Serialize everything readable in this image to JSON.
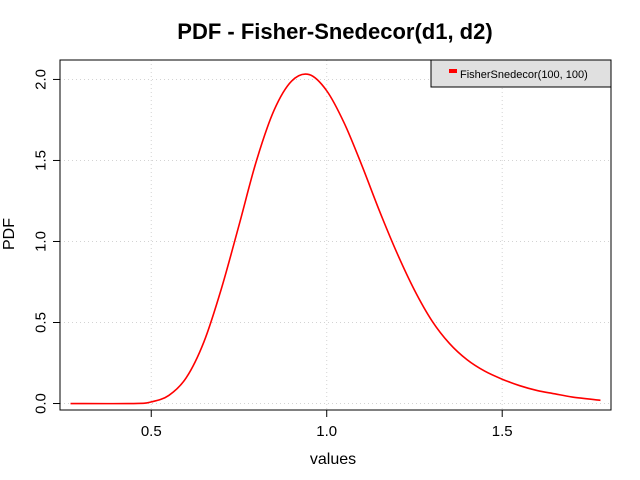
{
  "chart_data": {
    "type": "line",
    "title": "PDF - Fisher-Snedecor(d1, d2)",
    "xlabel": "values",
    "ylabel": "PDF",
    "xlim": [
      0.24,
      1.81
    ],
    "ylim": [
      -0.04,
      2.12
    ],
    "xticks": [
      0.5,
      1.0,
      1.5
    ],
    "xtick_labels": [
      "0.5",
      "1.0",
      "1.5"
    ],
    "yticks": [
      0.0,
      0.5,
      1.0,
      1.5,
      2.0
    ],
    "ytick_labels": [
      "0.0",
      "0.5",
      "1.0",
      "1.5",
      "2.0"
    ],
    "grid": true,
    "legend_position": "top-right",
    "series": [
      {
        "name": "FisherSnedecor(100, 100)",
        "color": "#ff0000",
        "x": [
          0.27,
          0.45,
          0.5,
          0.55,
          0.6,
          0.65,
          0.7,
          0.75,
          0.8,
          0.85,
          0.9,
          0.95,
          1.0,
          1.05,
          1.1,
          1.15,
          1.2,
          1.25,
          1.3,
          1.35,
          1.4,
          1.45,
          1.5,
          1.55,
          1.6,
          1.65,
          1.7,
          1.78
        ],
        "y": [
          0.0,
          0.0,
          0.01,
          0.05,
          0.16,
          0.38,
          0.71,
          1.1,
          1.5,
          1.81,
          1.99,
          2.03,
          1.93,
          1.73,
          1.47,
          1.19,
          0.93,
          0.7,
          0.51,
          0.37,
          0.27,
          0.2,
          0.15,
          0.11,
          0.08,
          0.06,
          0.04,
          0.02
        ]
      }
    ]
  }
}
